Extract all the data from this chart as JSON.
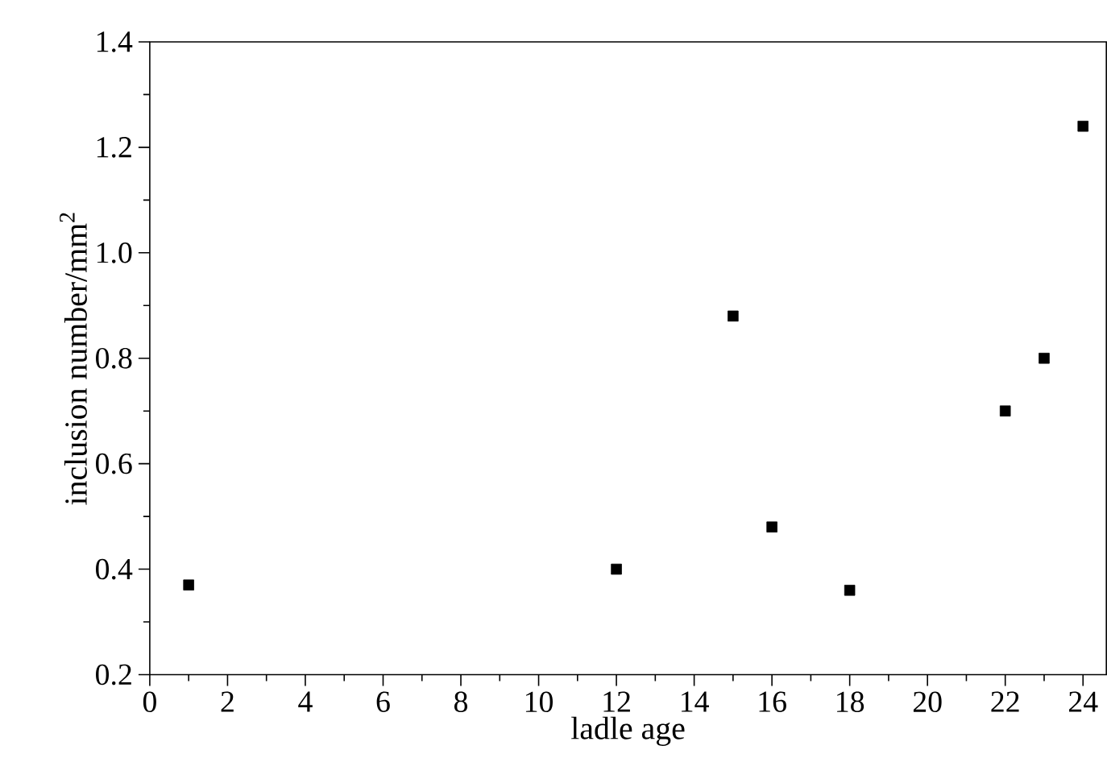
{
  "chart_data": {
    "type": "scatter",
    "xlabel": "ladle age",
    "ylabel": "inclusion number/mm$^{2}$",
    "x": [
      1,
      12,
      15,
      16,
      18,
      22,
      23,
      24
    ],
    "series": [
      {
        "color": "#000000",
        "values": [
          0.37,
          0.4,
          0.88,
          0.48,
          0.36,
          0.7,
          0.8,
          1.24
        ]
      }
    ],
    "marker": "square",
    "grid": false,
    "legend": false,
    "xlim": [
      0,
      24.6
    ],
    "ylim": [
      0.2,
      1.4
    ],
    "xticks": [
      0,
      2,
      4,
      6,
      8,
      10,
      12,
      14,
      16,
      18,
      20,
      22,
      24
    ],
    "yticks": [
      {
        "value": 0.2,
        "label": "0.2"
      },
      {
        "value": 0.4,
        "label": "0.4"
      },
      {
        "value": 0.6,
        "label": "0.6"
      },
      {
        "value": 0.8,
        "label": "0.8"
      },
      {
        "value": 1.0,
        "label": "1.0"
      },
      {
        "value": 1.2,
        "label": "1.2"
      },
      {
        "value": 1.4,
        "label": "1.4"
      }
    ]
  }
}
